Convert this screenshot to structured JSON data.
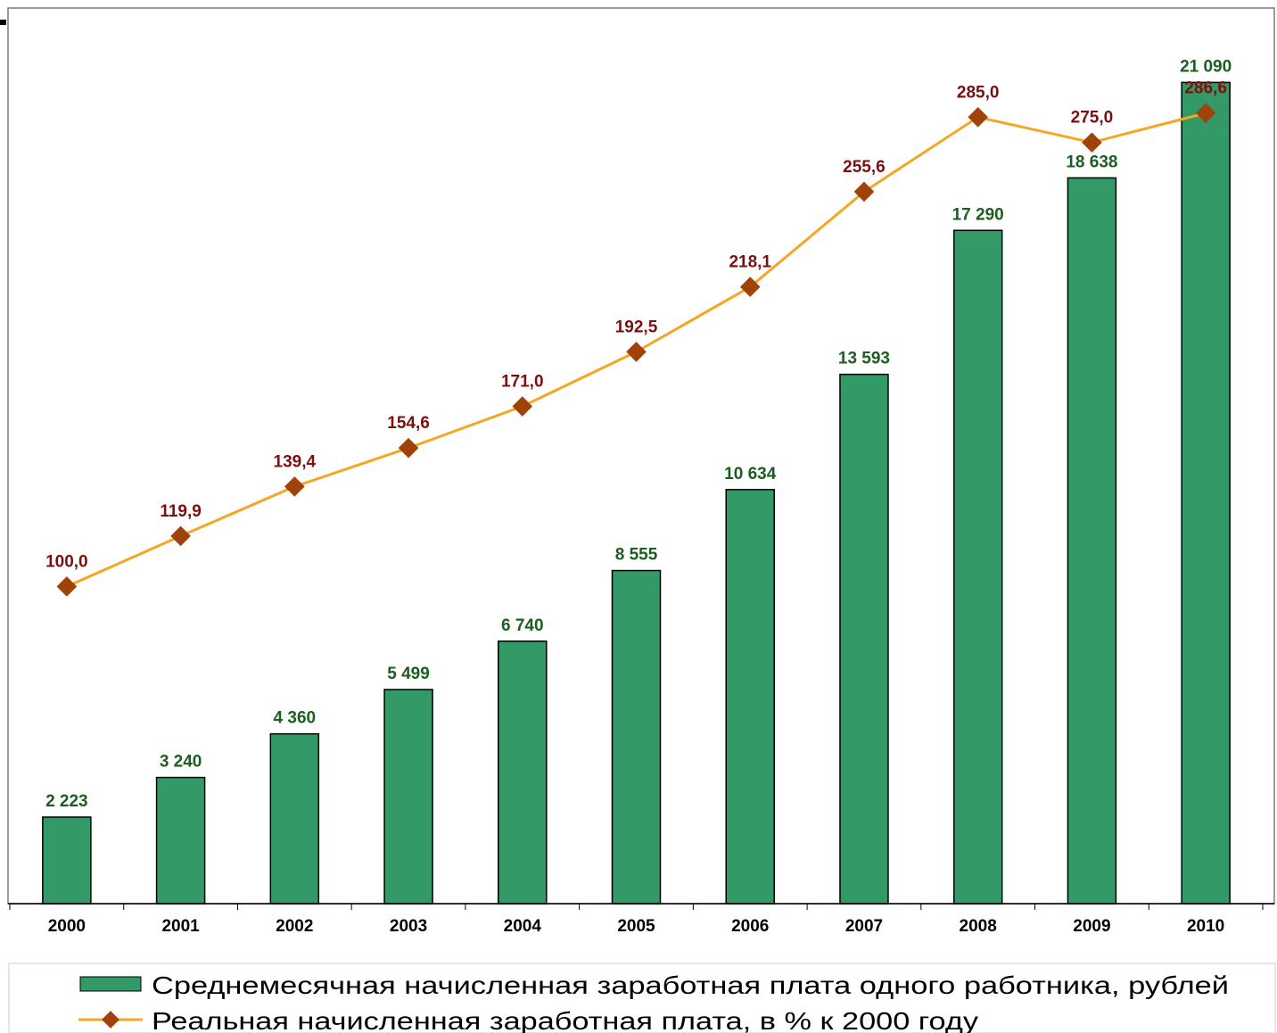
{
  "chart_data": {
    "type": "bar",
    "categories": [
      "2000",
      "2001",
      "2002",
      "2003",
      "2004",
      "2005",
      "2006",
      "2007",
      "2008",
      "2009",
      "2010"
    ],
    "series": [
      {
        "name": "Среднемесячная начисленная заработная плата одного работника, рублей",
        "type": "bar",
        "color": "#339966",
        "values": [
          2223,
          3240,
          4360,
          5499,
          6740,
          8555,
          10634,
          13593,
          17290,
          18638,
          21090
        ],
        "labels": [
          "2 223",
          "3 240",
          "4 360",
          "5 499",
          "6 740",
          "8 555",
          "10 634",
          "13 593",
          "17 290",
          "18 638",
          "21 090"
        ]
      },
      {
        "name": "Реальная начисленная заработная плата, в % к 2000 году",
        "type": "line",
        "color": "#F5A623",
        "marker_color": "#A0430A",
        "values": [
          100.0,
          119.9,
          139.4,
          154.6,
          171.0,
          192.5,
          218.1,
          255.6,
          285.0,
          275.0,
          286.6
        ],
        "labels": [
          "100,0",
          "119,9",
          "139,4",
          "154,6",
          "171,0",
          "192,5",
          "218,1",
          "255,6",
          "285,0",
          "275,0",
          "286,6"
        ]
      }
    ],
    "bar_axis_range": [
      0,
      23000
    ],
    "line_axis_range": [
      -25,
      328
    ],
    "bar_label_color": "#1B5E20",
    "line_label_color": "#7B1010",
    "grid": false,
    "legend_position": "bottom"
  }
}
